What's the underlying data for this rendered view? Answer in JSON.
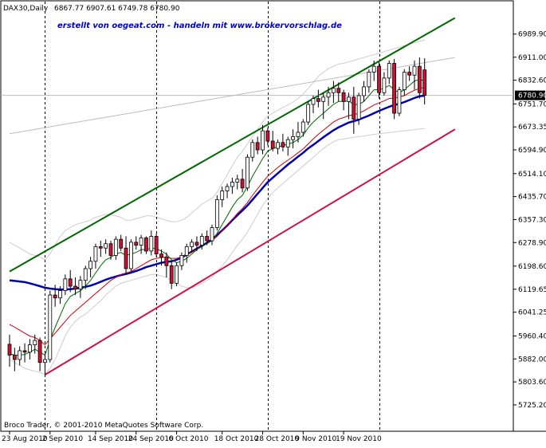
{
  "header": {
    "symbol": "DAX30,Daily",
    "ohlc": "6867.77 6907.61 6749.78 6780.90",
    "banner": "erstellt von oegeat.com - handeln mit www.brokervorschlag.de",
    "copyright": "Broco Trader, © 2001-2010 MetaQuotes Software Corp.",
    "current_price_label": "6780.90"
  },
  "colors": {
    "background": "#ffffff",
    "bull_candle": "#ffffff",
    "bear_candle": "#cc1133",
    "ma_fast": "#006600",
    "ma_mid": "#cc0000",
    "ma_slow": "#0000aa",
    "upper_channel": "#006600",
    "lower_channel": "#cc1144",
    "envelope": "#cccccc"
  },
  "chart_data": {
    "type": "candlestick",
    "ylim": [
      5725.0,
      7030.0
    ],
    "y_ticks": [
      "6989.90",
      "6911.00",
      "6832.60",
      "6751.70",
      "6673.35",
      "6594.90",
      "6514.10",
      "6435.70",
      "6357.30",
      "6278.90",
      "6198.60",
      "6119.65",
      "6041.25",
      "5960.40",
      "5882.00",
      "5803.60",
      "5725.20"
    ],
    "x_ticks": [
      "23 Aug 2010",
      "2 Sep 2010",
      "14 Sep 2010",
      "24 Sep 2010",
      "6 Oct 2010",
      "18 Oct 2010",
      "28 Oct 2010",
      "9 Nov 2010",
      "19 Nov 2010"
    ],
    "x_tick_index": [
      0,
      8,
      17,
      25,
      33,
      42,
      50,
      58,
      66
    ],
    "period_separators_index": [
      7,
      29,
      51,
      73
    ],
    "candles": [
      [
        5932,
        5965,
        5855,
        5895
      ],
      [
        5895,
        5920,
        5840,
        5880
      ],
      [
        5880,
        5925,
        5860,
        5910
      ],
      [
        5910,
        5935,
        5870,
        5905
      ],
      [
        5905,
        5950,
        5880,
        5930
      ],
      [
        5930,
        5965,
        5900,
        5945
      ],
      [
        5945,
        5955,
        5840,
        5870
      ],
      [
        5870,
        5900,
        5825,
        5880
      ],
      [
        5880,
        6115,
        5870,
        6100
      ],
      [
        6100,
        6135,
        6060,
        6090
      ],
      [
        6090,
        6130,
        6070,
        6115
      ],
      [
        6115,
        6170,
        6100,
        6155
      ],
      [
        6155,
        6185,
        6110,
        6130
      ],
      [
        6130,
        6160,
        6100,
        6120
      ],
      [
        6120,
        6165,
        6090,
        6150
      ],
      [
        6150,
        6200,
        6120,
        6190
      ],
      [
        6190,
        6230,
        6160,
        6215
      ],
      [
        6215,
        6275,
        6190,
        6265
      ],
      [
        6265,
        6285,
        6230,
        6260
      ],
      [
        6260,
        6290,
        6240,
        6275
      ],
      [
        6275,
        6285,
        6220,
        6235
      ],
      [
        6235,
        6300,
        6220,
        6290
      ],
      [
        6290,
        6305,
        6250,
        6260
      ],
      [
        6260,
        6300,
        6170,
        6190
      ],
      [
        6190,
        6290,
        6180,
        6280
      ],
      [
        6280,
        6300,
        6255,
        6270
      ],
      [
        6270,
        6305,
        6240,
        6295
      ],
      [
        6295,
        6300,
        6240,
        6250
      ],
      [
        6250,
        6320,
        6235,
        6300
      ],
      [
        6300,
        6310,
        6230,
        6240
      ],
      [
        6240,
        6255,
        6200,
        6230
      ],
      [
        6230,
        6245,
        6160,
        6200
      ],
      [
        6200,
        6215,
        6120,
        6140
      ],
      [
        6140,
        6210,
        6130,
        6200
      ],
      [
        6200,
        6245,
        6185,
        6235
      ],
      [
        6235,
        6275,
        6210,
        6265
      ],
      [
        6265,
        6290,
        6245,
        6280
      ],
      [
        6280,
        6300,
        6250,
        6270
      ],
      [
        6270,
        6310,
        6255,
        6300
      ],
      [
        6300,
        6320,
        6270,
        6285
      ],
      [
        6285,
        6340,
        6270,
        6330
      ],
      [
        6330,
        6440,
        6320,
        6425
      ],
      [
        6425,
        6470,
        6400,
        6455
      ],
      [
        6455,
        6480,
        6430,
        6470
      ],
      [
        6470,
        6500,
        6445,
        6485
      ],
      [
        6485,
        6510,
        6460,
        6495
      ],
      [
        6495,
        6530,
        6450,
        6465
      ],
      [
        6465,
        6580,
        6455,
        6570
      ],
      [
        6570,
        6630,
        6555,
        6620
      ],
      [
        6620,
        6640,
        6580,
        6595
      ],
      [
        6595,
        6680,
        6580,
        6660
      ],
      [
        6660,
        6670,
        6610,
        6625
      ],
      [
        6625,
        6660,
        6590,
        6600
      ],
      [
        6600,
        6630,
        6580,
        6620
      ],
      [
        6620,
        6650,
        6590,
        6605
      ],
      [
        6605,
        6640,
        6575,
        6630
      ],
      [
        6630,
        6665,
        6600,
        6640
      ],
      [
        6640,
        6690,
        6620,
        6655
      ],
      [
        6655,
        6700,
        6640,
        6690
      ],
      [
        6690,
        6760,
        6680,
        6750
      ],
      [
        6750,
        6780,
        6720,
        6770
      ],
      [
        6770,
        6800,
        6740,
        6760
      ],
      [
        6760,
        6790,
        6700,
        6775
      ],
      [
        6775,
        6810,
        6745,
        6790
      ],
      [
        6790,
        6830,
        6755,
        6805
      ],
      [
        6805,
        6825,
        6760,
        6790
      ],
      [
        6790,
        6800,
        6730,
        6760
      ],
      [
        6760,
        6790,
        6700,
        6775
      ],
      [
        6775,
        6810,
        6650,
        6700
      ],
      [
        6700,
        6790,
        6680,
        6780
      ],
      [
        6780,
        6830,
        6760,
        6810
      ],
      [
        6810,
        6870,
        6790,
        6860
      ],
      [
        6860,
        6900,
        6830,
        6880
      ],
      [
        6880,
        6895,
        6770,
        6790
      ],
      [
        6790,
        6860,
        6780,
        6840
      ],
      [
        6840,
        6900,
        6820,
        6890
      ],
      [
        6890,
        6905,
        6700,
        6720
      ],
      [
        6720,
        6810,
        6710,
        6800
      ],
      [
        6800,
        6870,
        6780,
        6860
      ],
      [
        6860,
        6880,
        6830,
        6850
      ],
      [
        6850,
        6900,
        6800,
        6880
      ],
      [
        6880,
        6910,
        6770,
        6790
      ],
      [
        6867.77,
        6907.61,
        6749.78,
        6780.9
      ]
    ],
    "ma_fast": [
      5900,
      5895,
      5895,
      5897,
      5905,
      5915,
      5905,
      5895,
      5945,
      5990,
      6030,
      6070,
      6095,
      6105,
      6115,
      6130,
      6150,
      6175,
      6200,
      6220,
      6228,
      6240,
      6245,
      6235,
      6240,
      6245,
      6255,
      6255,
      6260,
      6258,
      6250,
      6240,
      6220,
      6210,
      6215,
      6225,
      6240,
      6255,
      6265,
      6275,
      6285,
      6310,
      6340,
      6370,
      6400,
      6425,
      6440,
      6470,
      6505,
      6535,
      6565,
      6590,
      6600,
      6605,
      6610,
      6615,
      6620,
      6630,
      6645,
      6670,
      6690,
      6705,
      6720,
      6735,
      6750,
      6760,
      6760,
      6762,
      6750,
      6750,
      6760,
      6780,
      6800,
      6800,
      6805,
      6815,
      6800,
      6790,
      6800,
      6815,
      6830,
      6835,
      6830
    ],
    "ma_mid": [
      6000,
      5990,
      5980,
      5970,
      5960,
      5955,
      5945,
      5930,
      5950,
      5970,
      5990,
      6010,
      6030,
      6045,
      6060,
      6075,
      6090,
      6105,
      6120,
      6135,
      6150,
      6160,
      6170,
      6175,
      6180,
      6190,
      6200,
      6210,
      6220,
      6225,
      6228,
      6228,
      6225,
      6225,
      6230,
      6238,
      6246,
      6256,
      6266,
      6276,
      6286,
      6300,
      6318,
      6338,
      6358,
      6378,
      6395,
      6415,
      6440,
      6462,
      6484,
      6505,
      6520,
      6535,
      6548,
      6560,
      6572,
      6585,
      6598,
      6615,
      6632,
      6648,
      6662,
      6676,
      6690,
      6700,
      6705,
      6712,
      6715,
      6720,
      6728,
      6738,
      6748,
      6755,
      6762,
      6770,
      6772,
      6775,
      6780,
      6790,
      6798,
      6805,
      6808
    ],
    "ma_slow": [
      6150,
      6148,
      6146,
      6144,
      6140,
      6135,
      6130,
      6125,
      6122,
      6120,
      6119,
      6119,
      6120,
      6122,
      6125,
      6128,
      6132,
      6138,
      6145,
      6152,
      6158,
      6163,
      6168,
      6172,
      6176,
      6182,
      6188,
      6195,
      6200,
      6205,
      6210,
      6213,
      6215,
      6220,
      6228,
      6238,
      6248,
      6258,
      6268,
      6278,
      6290,
      6305,
      6320,
      6337,
      6355,
      6372,
      6388,
      6405,
      6425,
      6445,
      6465,
      6485,
      6500,
      6515,
      6530,
      6545,
      6558,
      6572,
      6585,
      6600,
      6612,
      6625,
      6638,
      6650,
      6662,
      6672,
      6680,
      6688,
      6693,
      6698,
      6705,
      6712,
      6720,
      6728,
      6735,
      6742,
      6748,
      6752,
      6758,
      6765,
      6772,
      6778,
      6780
    ],
    "upper_channel": {
      "start": [
        0,
        6180
      ],
      "end": [
        88,
        7045
      ]
    },
    "lower_channel": {
      "start": [
        7,
        5828
      ],
      "end": [
        88,
        6665
      ]
    },
    "resistance_line": {
      "start": [
        0,
        6650
      ],
      "end": [
        88,
        6910
      ]
    },
    "envelope_upper": [
      6280,
      6270,
      6260,
      6250,
      6240,
      6235,
      6230,
      6220,
      6240,
      6270,
      6300,
      6320,
      6330,
      6340,
      6345,
      6350,
      6355,
      6365,
      6370,
      6375,
      6375,
      6370,
      6365,
      6355,
      6355,
      6360,
      6365,
      6370,
      6370,
      6365,
      6360,
      6355,
      6350,
      6350,
      6355,
      6365,
      6380,
      6395,
      6410,
      6420,
      6430,
      6450,
      6480,
      6510,
      6540,
      6570,
      6590,
      6615,
      6640,
      6665,
      6690,
      6710,
      6720,
      6730,
      6740,
      6748,
      6758,
      6770,
      6785,
      6805,
      6825,
      6845,
      6860,
      6872,
      6880,
      6888,
      6890,
      6895,
      6900,
      6905,
      6910,
      6915,
      6920,
      6925,
      6930,
      6935,
      6940,
      6945,
      6950,
      6955,
      6960,
      6965,
      6970
    ],
    "envelope_lower": [
      5880,
      5870,
      5860,
      5850,
      5845,
      5840,
      5835,
      5830,
      5850,
      5880,
      5920,
      5960,
      5990,
      6010,
      6025,
      6035,
      6050,
      6065,
      6080,
      6100,
      6115,
      6130,
      6140,
      6145,
      6150,
      6155,
      6160,
      6165,
      6170,
      6170,
      6165,
      6160,
      6150,
      6140,
      6130,
      6125,
      6125,
      6130,
      6140,
      6150,
      6160,
      6180,
      6200,
      6220,
      6245,
      6270,
      6290,
      6315,
      6345,
      6375,
      6405,
      6430,
      6450,
      6465,
      6480,
      6495,
      6510,
      6525,
      6540,
      6555,
      6570,
      6585,
      6600,
      6612,
      6622,
      6630,
      6632,
      6635,
      6638,
      6640,
      6642,
      6645,
      6648,
      6650,
      6652,
      6654,
      6656,
      6658,
      6660,
      6662,
      6664,
      6666,
      6668
    ]
  }
}
